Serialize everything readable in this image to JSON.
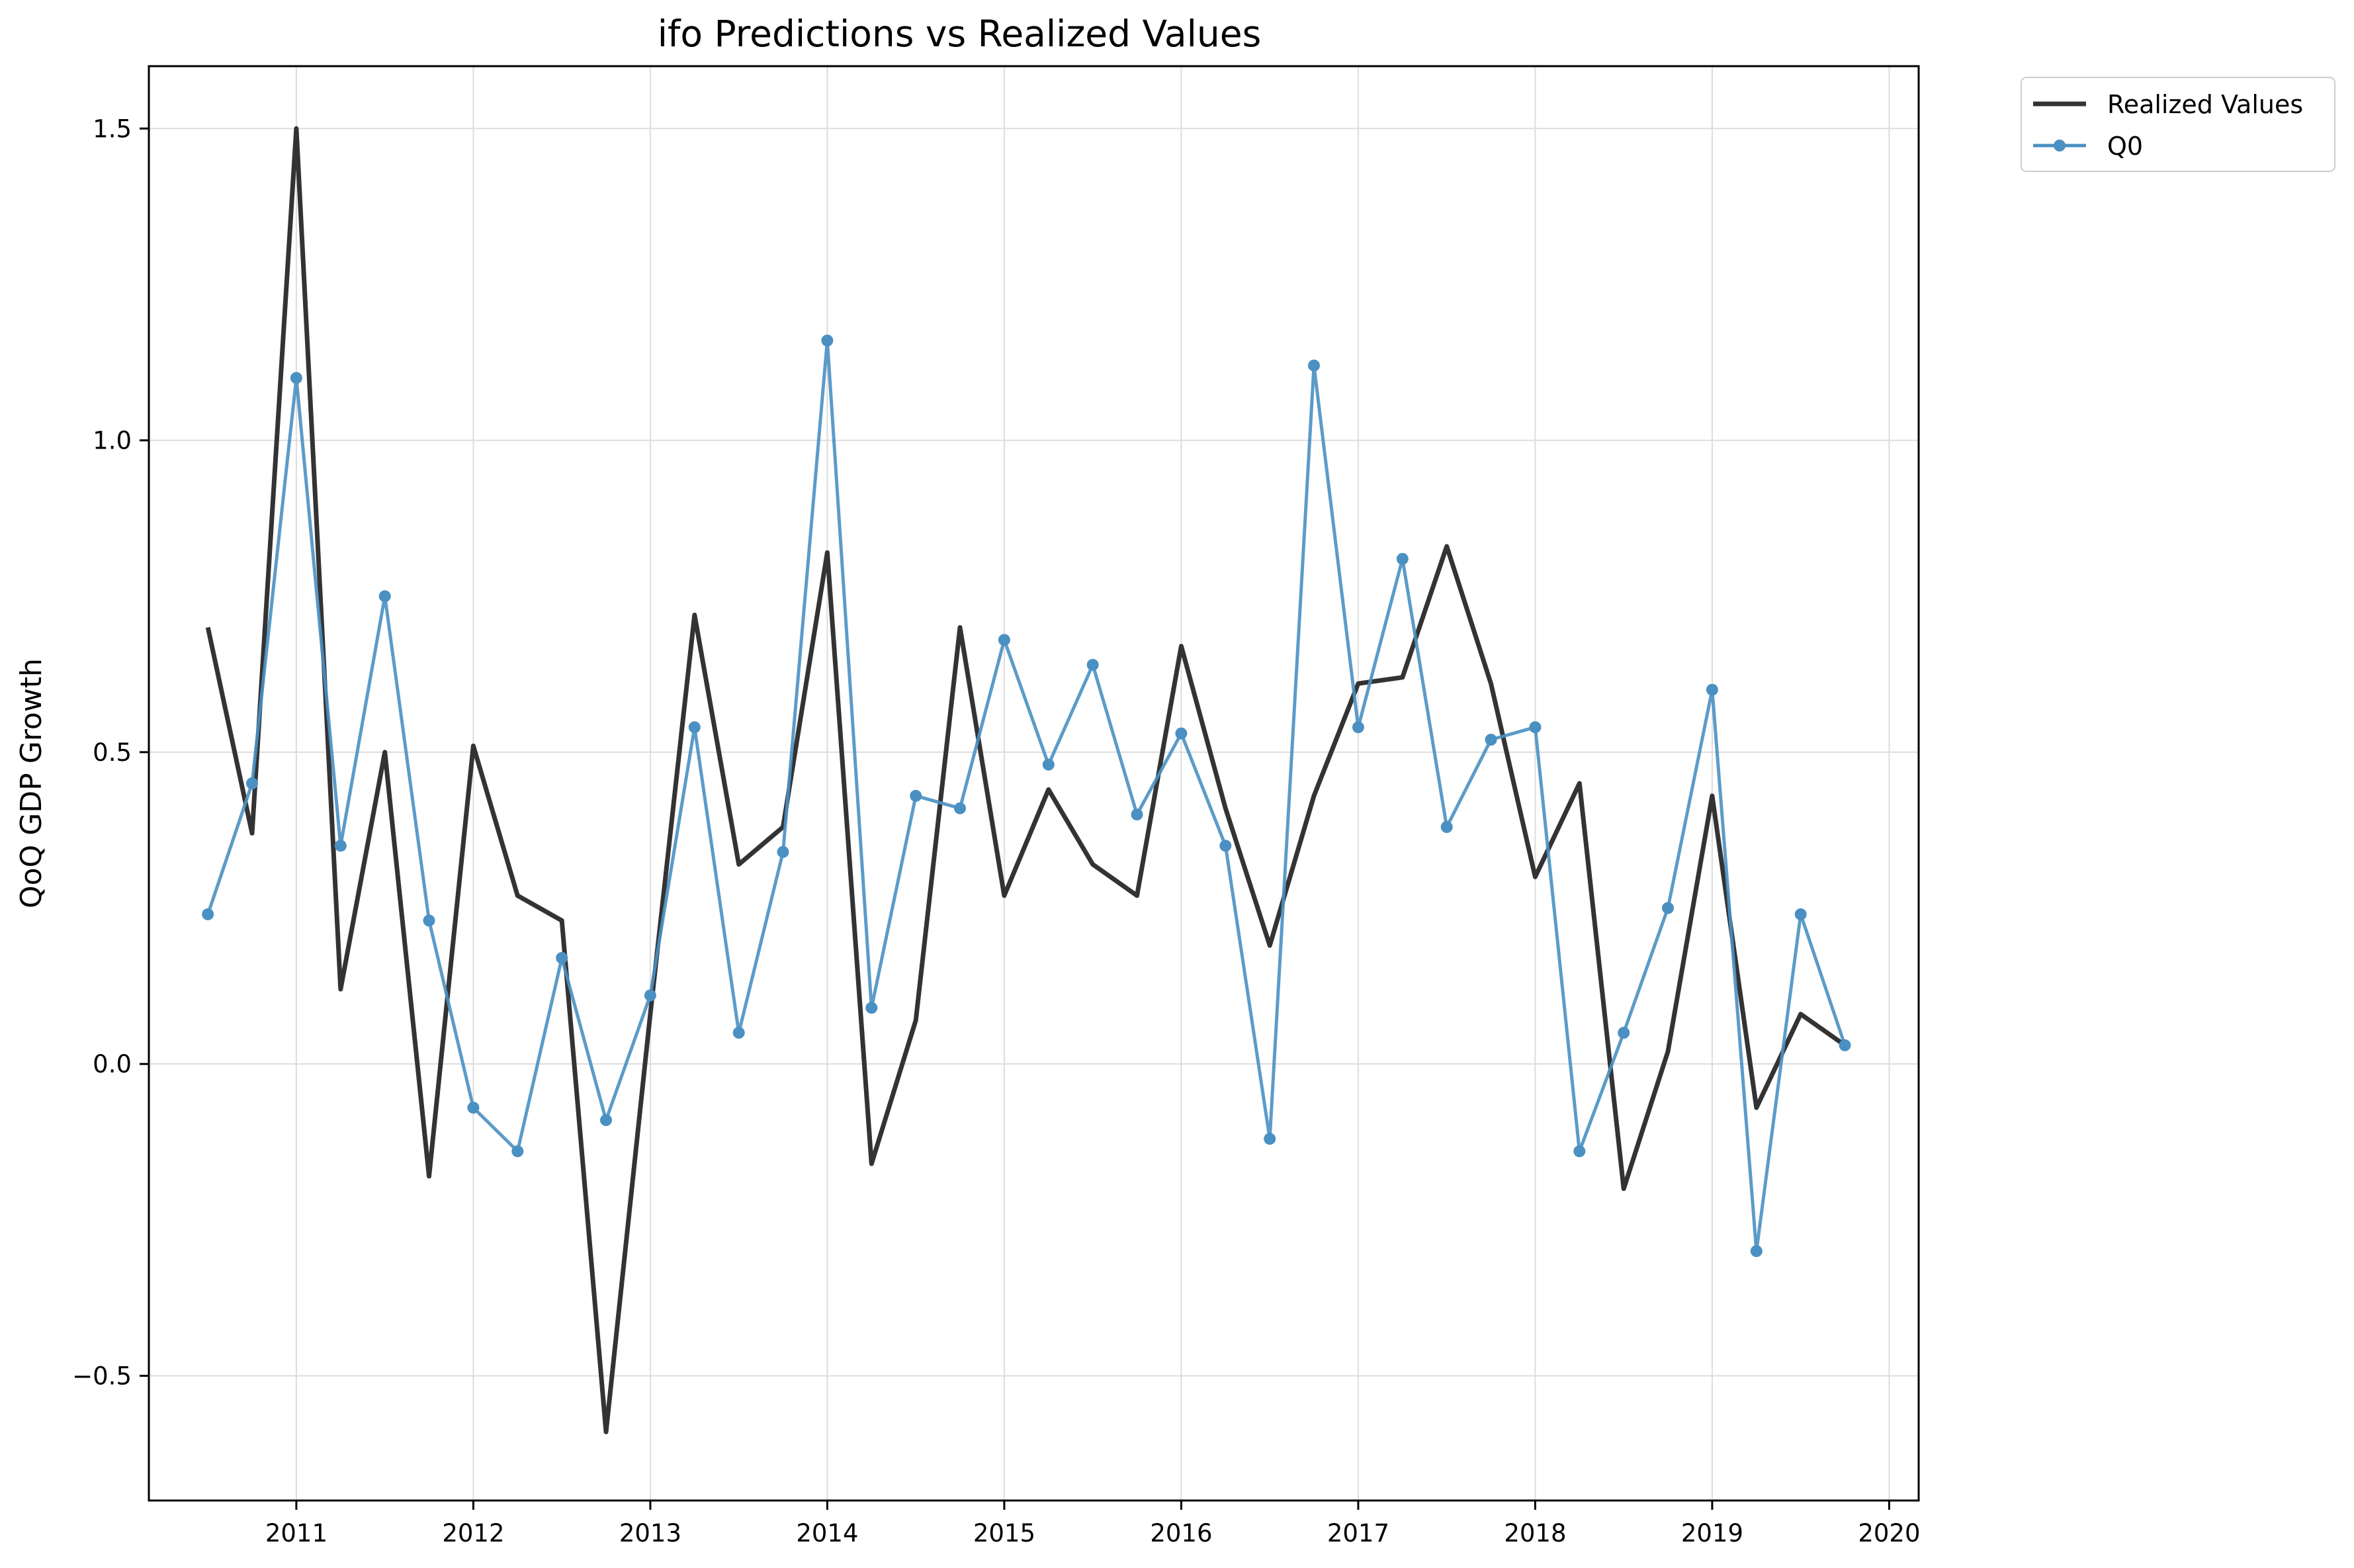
{
  "chart_data": {
    "type": "line",
    "title": "ifo Predictions vs Realized Values",
    "xlabel": "",
    "ylabel": "QoQ GDP Growth",
    "xlim": [
      "2010-03",
      "2020-03"
    ],
    "ylim": [
      -0.7,
      1.6
    ],
    "x_ticks": [
      "2011",
      "2012",
      "2013",
      "2014",
      "2015",
      "2016",
      "2017",
      "2018",
      "2019",
      "2020"
    ],
    "y_ticks": [
      -0.5,
      0.0,
      0.5,
      1.0,
      1.5
    ],
    "y_tick_labels": [
      "−0.5",
      "0.0",
      "0.5",
      "1.0",
      "1.5"
    ],
    "grid": true,
    "legend_position": "outside top-right",
    "x": [
      "2010-07",
      "2010-10",
      "2011-01",
      "2011-04",
      "2011-07",
      "2011-10",
      "2012-01",
      "2012-04",
      "2012-07",
      "2012-10",
      "2013-01",
      "2013-04",
      "2013-07",
      "2013-10",
      "2014-01",
      "2014-04",
      "2014-07",
      "2014-10",
      "2015-01",
      "2015-04",
      "2015-07",
      "2015-10",
      "2016-01",
      "2016-04",
      "2016-07",
      "2016-10",
      "2017-01",
      "2017-04",
      "2017-07",
      "2017-10",
      "2018-01",
      "2018-04",
      "2018-07",
      "2018-10",
      "2019-01",
      "2019-04",
      "2019-07",
      "2019-10"
    ],
    "series": [
      {
        "name": "Realized Values",
        "color": "#333333",
        "marker": "none",
        "values": [
          0.7,
          0.37,
          1.5,
          0.12,
          0.5,
          -0.18,
          0.51,
          0.27,
          0.23,
          -0.59,
          0.08,
          0.72,
          0.32,
          0.38,
          0.82,
          -0.16,
          0.07,
          0.7,
          0.27,
          0.44,
          0.32,
          0.27,
          0.67,
          0.41,
          0.19,
          0.43,
          0.61,
          0.62,
          0.83,
          0.61,
          0.3,
          0.45,
          -0.2,
          0.02,
          0.43,
          -0.07,
          0.08,
          0.03
        ]
      },
      {
        "name": "Q0",
        "color": "#4a90c2",
        "marker": "circle",
        "values": [
          0.24,
          0.45,
          1.1,
          0.35,
          0.75,
          0.23,
          -0.07,
          -0.14,
          0.17,
          -0.09,
          0.11,
          0.54,
          0.05,
          0.34,
          1.16,
          0.09,
          0.43,
          0.41,
          0.68,
          0.48,
          0.64,
          0.4,
          0.53,
          0.35,
          -0.12,
          1.12,
          0.54,
          0.81,
          0.38,
          0.52,
          0.54,
          -0.14,
          0.05,
          0.25,
          0.6,
          -0.3,
          0.24,
          0.03
        ]
      }
    ]
  }
}
